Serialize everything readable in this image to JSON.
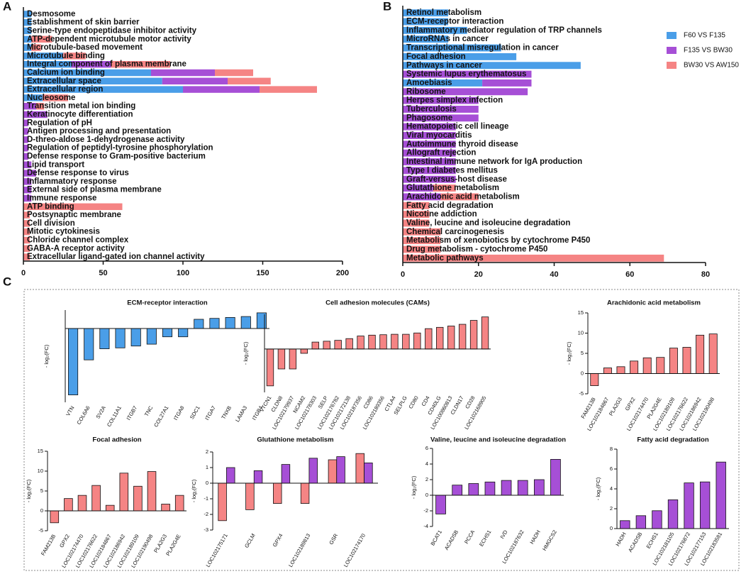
{
  "panel_labels": [
    "A",
    "B",
    "C"
  ],
  "chart_data": [
    {
      "type": "bar",
      "orientation": "horizontal",
      "stacked": true,
      "categories": [
        "Desmosome",
        "Establishment of skin barrier",
        "Serine-type endopeptidase inhibitor activity",
        "ATP-dependent microtubule motor activity",
        "Microtubule-based movement",
        "Microtubule binding",
        "Integral component of plasma membrane",
        "Calcium ion binding",
        "Extracellular space",
        "Extracellular region",
        "Nucleosome",
        "Transition metal ion binding",
        "Keratinocyte differentiation",
        "Regulation of pH",
        "Antigen processing and presentation",
        "D-threo-aldose 1-dehydrogenase activity",
        "Regulation of peptidyl-tyrosine phosphorylation",
        "Defense response to Gram-positive bacterium",
        "Lipid transport",
        "Defense response to virus",
        "Inflammatory response",
        "External side of plasma membrane",
        "Immune response",
        "ATP binding",
        "Postsynaptic membrane",
        "Cell division",
        "Mitotic cytokinesis",
        "Chloride channel complex",
        "GABA-A receptor activity",
        "Extracellular ligand-gated ion channel activity"
      ],
      "series": [
        {
          "color": "#4a9ee8",
          "values": [
            5,
            5,
            5,
            5,
            5,
            25,
            30,
            80,
            87,
            100,
            12,
            0,
            0,
            0,
            0,
            0,
            0,
            0,
            0,
            0,
            0,
            0,
            0,
            0,
            0,
            0,
            0,
            0,
            0,
            0
          ]
        },
        {
          "color": "#a64fd6",
          "values": [
            0,
            0,
            0,
            0,
            0,
            0,
            25,
            40,
            41,
            48,
            0,
            8,
            15,
            3,
            3,
            3,
            3,
            3,
            5,
            8,
            5,
            5,
            5,
            0,
            0,
            0,
            0,
            0,
            0,
            0
          ]
        },
        {
          "color": "#f58484",
          "values": [
            0,
            0,
            0,
            13,
            6,
            14,
            37,
            24,
            27,
            36,
            16,
            5,
            0,
            0,
            0,
            0,
            0,
            0,
            0,
            0,
            0,
            0,
            0,
            62,
            4,
            4,
            4,
            4,
            4,
            4
          ]
        }
      ],
      "xlim": [
        0,
        200
      ],
      "xticks": [
        0,
        50,
        100,
        150,
        200
      ]
    },
    {
      "type": "bar",
      "orientation": "horizontal",
      "stacked": true,
      "legend": "upper right",
      "categories": [
        "Retinol metabolism",
        "ECM-receptor interaction",
        "Inflammatory mediator regulation of TRP channels",
        "MicroRNAs in cancer",
        "Transcriptional misregulation in cancer",
        "Focal adhesion",
        "Pathways in cancer",
        "Systemic lupus erythematosus",
        "Amoebiasis",
        "Ribosome",
        "Herpes simplex infection",
        "Tuberculosis",
        "Phagosome",
        "Hematopoietic cell lineage",
        "Viral myocarditis",
        "Autoimmune thyroid disease",
        "Allograft rejection",
        "Intestinal immune network for IgA production",
        "Type I diabetes mellitus",
        "Graft-versus-host disease",
        "Glutathione metabolism",
        "Arachidonic acid metabolism",
        "Fatty acid degradation",
        "Nicotine addiction",
        "Valine, leucine and isoleucine degradation",
        "Chemical carcinogenesis",
        "Metabolism of xenobiotics by cytochrome P450",
        "Drug metabolism - cytochrome P450",
        "Metabolic pathways"
      ],
      "series": [
        {
          "name": "F60 VS F135",
          "color": "#4a9ee8",
          "values": [
            12,
            12,
            17,
            12,
            26,
            30,
            47,
            0,
            21,
            0,
            0,
            0,
            0,
            0,
            0,
            0,
            0,
            0,
            0,
            0,
            0,
            0,
            0,
            0,
            0,
            0,
            0,
            0,
            0
          ]
        },
        {
          "name": "F135 VS BW30",
          "color": "#a64fd6",
          "values": [
            0,
            0,
            0,
            0,
            0,
            0,
            0,
            34,
            13,
            33,
            20,
            20,
            20,
            14,
            14,
            14,
            14,
            14,
            14,
            14,
            8,
            10,
            0,
            0,
            0,
            0,
            0,
            0,
            0
          ]
        },
        {
          "name": "BW30 VS AW150",
          "color": "#f58484",
          "values": [
            0,
            0,
            0,
            0,
            0,
            0,
            0,
            0,
            0,
            0,
            0,
            0,
            0,
            0,
            0,
            0,
            0,
            0,
            0,
            0,
            6,
            10,
            7,
            7,
            7,
            10,
            10,
            10,
            69
          ]
        }
      ],
      "xlim": [
        0,
        80
      ],
      "xticks": [
        0,
        20,
        40,
        60,
        80
      ]
    },
    {
      "type": "bar",
      "title": "ECM-receptor interaction",
      "ylabel": "- log₂(FC)",
      "color": "#4a9ee8",
      "categories": [
        "VTN",
        "COL6A6",
        "SV2A",
        "COL11A1",
        "ITGB7",
        "TNC",
        "COL27A1",
        "ITGA8",
        "SDC1",
        "ITGA7",
        "TNXB",
        "LAMA3",
        "ITGB4"
      ],
      "values": [
        -7.2,
        -3.4,
        -2.2,
        -2.1,
        -1.9,
        -1.7,
        -0.9,
        -0.9,
        1.0,
        1.1,
        1.2,
        1.3,
        1.7
      ],
      "ylim": [
        -8,
        2
      ]
    },
    {
      "type": "bar",
      "title": "Cell adhesion molecules (CAMs)",
      "ylabel": "- log₂(FC)",
      "color": "#f58484",
      "categories": [
        "VTCN1",
        "CLDN8",
        "LOC102179937",
        "NCAM2",
        "LOC102178303",
        "SELP",
        "LOC102176782",
        "LOC102172138",
        "LOC102187356",
        "CD86",
        "LOC102189356",
        "CTLA4",
        "SELPLG",
        "CD80",
        "CD4",
        "CD40LG",
        "LOC100860813",
        "CLDN17",
        "CD28",
        "LOC102168905"
      ],
      "values": [
        -8.5,
        -4.6,
        -4.6,
        -1.0,
        1.6,
        1.8,
        2.0,
        2.4,
        3.0,
        3.2,
        3.3,
        3.4,
        3.4,
        3.7,
        4.7,
        5.0,
        5.3,
        5.7,
        6.6,
        7.4
      ],
      "ylim": [
        -10,
        8
      ]
    },
    {
      "type": "bar",
      "title": "Arachidonic acid metabolism",
      "ylabel": "- log₂(FC)",
      "color": "#f58484",
      "categories": [
        "FAM213B",
        "LOC102184867",
        "PLA2G3",
        "GPX2",
        "LOC102174470",
        "PLA2G4E",
        "LOC102189109",
        "LOC102176622",
        "LOC102186942",
        "LOC102190498"
      ],
      "values": [
        -3.0,
        1.4,
        1.7,
        3.1,
        3.9,
        4.0,
        6.3,
        6.5,
        9.5,
        9.8
      ],
      "ylim": [
        -5,
        15
      ],
      "yticks": [
        -5,
        0,
        5,
        10,
        15
      ]
    },
    {
      "type": "bar",
      "title": "Focal adhesion",
      "ylabel": "- log₂(FC)",
      "color": "#f58484",
      "categories": [
        "FAM213B",
        "GPX2",
        "LOC102174470",
        "LOC102176622",
        "LOC102184867",
        "LOC102186942",
        "LOC102189109",
        "LOC102190498",
        "PLA2G3",
        "PLA2G4E"
      ],
      "values": [
        -3.0,
        3.1,
        3.9,
        6.4,
        1.4,
        9.5,
        6.2,
        9.9,
        1.7,
        3.9
      ],
      "ylim": [
        -5,
        15
      ],
      "yticks": [
        -5,
        0,
        5,
        10,
        15
      ]
    },
    {
      "type": "bar",
      "title": "Glutathione metabolism",
      "ylabel": "- log₂(FC)",
      "categories": [
        "LOC102175171",
        "GCLM",
        "GPX4",
        "LOC102189813",
        "GSR",
        "LOC102174170"
      ],
      "series": [
        {
          "color": "#f58484",
          "values": [
            -2.4,
            -1.7,
            -1.3,
            -1.3,
            1.5,
            1.9
          ]
        },
        {
          "color": "#a64fd6",
          "values": [
            1.0,
            0.8,
            1.2,
            1.6,
            1.7,
            1.3
          ]
        }
      ],
      "ylim": [
        -3,
        2
      ],
      "yticks": [
        -3,
        -2,
        -1,
        0,
        1,
        2
      ]
    },
    {
      "type": "bar",
      "title": "Valine, leucine and isoleucine degradation",
      "ylabel": "- log₂(FC)",
      "color": "#a64fd6",
      "categories": [
        "BCAT1",
        "ACADSB",
        "PCCA",
        "ECHS1",
        "IVD",
        "LOC102187632",
        "HADH",
        "HMGCS2"
      ],
      "values": [
        -2.4,
        1.3,
        1.5,
        1.7,
        1.9,
        1.9,
        2.0,
        4.6
      ],
      "ylim": [
        -4,
        6
      ],
      "yticks": [
        -4,
        -2,
        0,
        2,
        4,
        6
      ]
    },
    {
      "type": "bar",
      "title": "Fatty acid degradation",
      "ylabel": "- log₂(FC)",
      "color": "#a64fd6",
      "categories": [
        "HADH",
        "ACADSB",
        "ECHS1",
        "LOC102181105",
        "LOC102176872",
        "LOC102177153",
        "LOC102183581"
      ],
      "values": [
        0.8,
        1.3,
        1.8,
        2.9,
        4.6,
        4.7,
        6.7
      ],
      "ylim": [
        0,
        8
      ],
      "yticks": [
        0,
        2,
        4,
        6,
        8
      ]
    }
  ]
}
